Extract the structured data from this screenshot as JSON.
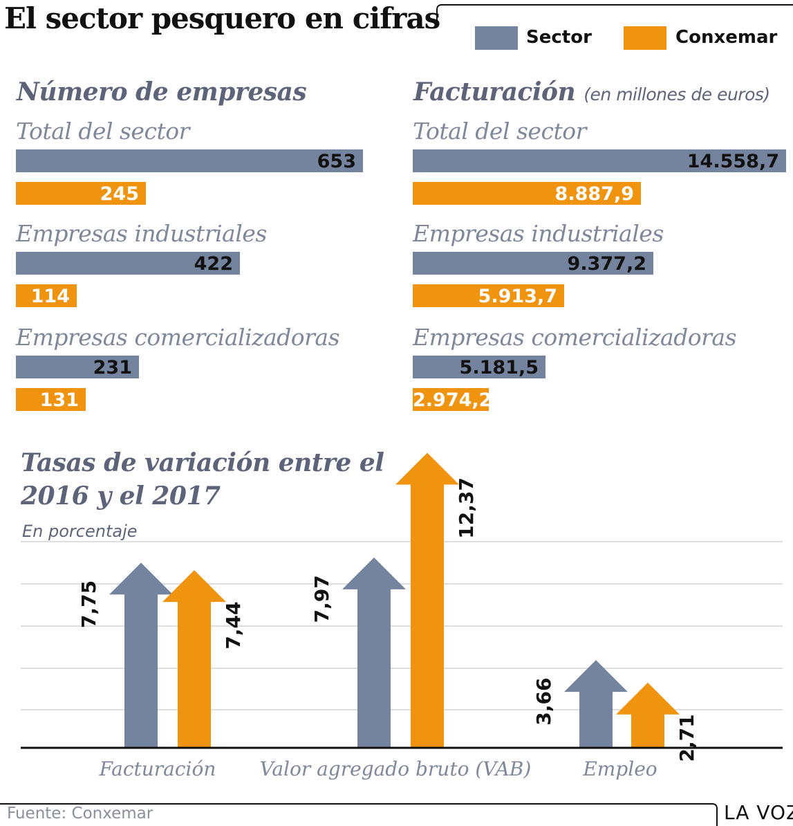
{
  "title": "El sector pesquero en cifras",
  "legend": {
    "sector": "Sector",
    "conxemar": "Conxemar"
  },
  "colors": {
    "sector": "#75849e",
    "conxemar": "#f0930f",
    "heading": "#5d6479",
    "label": "#7f879b"
  },
  "source": "Fuente: Conxemar",
  "brand": "LA VOZ",
  "chart_data": [
    {
      "type": "bar",
      "orientation": "horizontal",
      "title": "Número de empresas",
      "subtitle": "",
      "categories": [
        "Total del sector",
        "Empresas industriales",
        "Empresas comercializadoras"
      ],
      "series": [
        {
          "name": "Sector",
          "values": [
            653,
            422,
            231
          ],
          "labels": [
            "653",
            "422",
            "231"
          ]
        },
        {
          "name": "Conxemar",
          "values": [
            245,
            114,
            131
          ],
          "labels": [
            "245",
            "114",
            "131"
          ]
        }
      ]
    },
    {
      "type": "bar",
      "orientation": "horizontal",
      "title": "Facturación",
      "subtitle": "(en millones de euros)",
      "categories": [
        "Total del sector",
        "Empresas industriales",
        "Empresas comercializadoras"
      ],
      "series": [
        {
          "name": "Sector",
          "values": [
            14558.7,
            9377.2,
            5181.5
          ],
          "labels": [
            "14.558,7",
            "9.377,2",
            "5.181,5"
          ]
        },
        {
          "name": "Conxemar",
          "values": [
            8887.9,
            5913.7,
            2974.2
          ],
          "labels": [
            "8.887,9",
            "5.913,7",
            "2.974,2"
          ]
        }
      ]
    },
    {
      "type": "bar",
      "orientation": "vertical",
      "title": "Tasas de variación entre el 2016 y el 2017",
      "ylabel": "En porcentaje",
      "grid": true,
      "ylim": [
        0,
        14
      ],
      "categories": [
        "Facturación",
        "Valor agregado bruto (VAB)",
        "Empleo"
      ],
      "series": [
        {
          "name": "Sector",
          "values": [
            7.75,
            7.97,
            3.66
          ],
          "labels": [
            "7,75",
            "7,97",
            "3,66"
          ]
        },
        {
          "name": "Conxemar",
          "values": [
            7.44,
            12.37,
            2.71
          ],
          "labels": [
            "7,44",
            "12,37",
            "2,71"
          ]
        }
      ]
    }
  ]
}
